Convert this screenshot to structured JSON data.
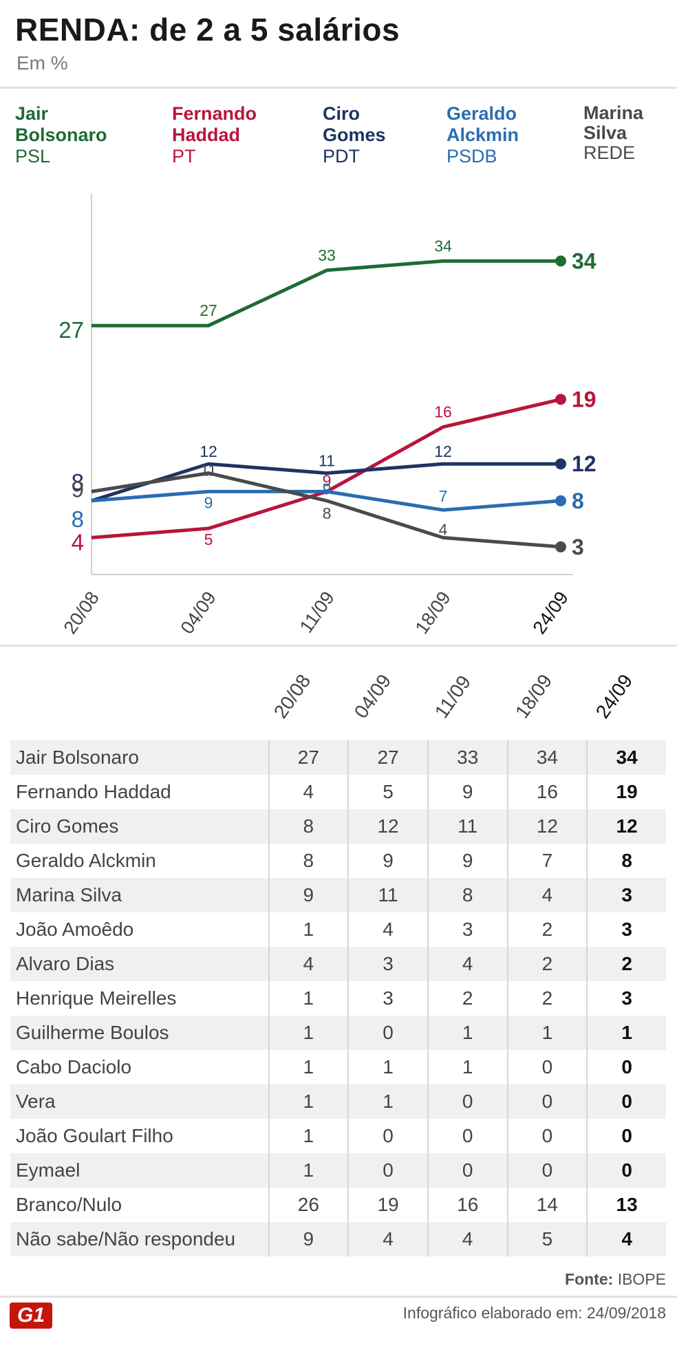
{
  "title": "RENDA: de 2 a 5 salários",
  "subtitle": "Em %",
  "legend": [
    {
      "name": "Jair Bolsonaro",
      "name_l1": "Jair",
      "name_l2": "Bolsonaro",
      "party": "PSL",
      "color": "#1e6b34"
    },
    {
      "name": "Fernando Haddad",
      "name_l1": "Fernando",
      "name_l2": "Haddad",
      "party": "PT",
      "color": "#b8153a"
    },
    {
      "name": "Ciro Gomes",
      "name_l1": "Ciro",
      "name_l2": "Gomes",
      "party": "PDT",
      "color": "#1f3364"
    },
    {
      "name": "Geraldo Alckmin",
      "name_l1": "Geraldo",
      "name_l2": "Alckmin",
      "party": "PSDB",
      "color": "#2a6db0"
    },
    {
      "name": "Marina Silva",
      "name_l1": "Marina",
      "name_l2": "Silva",
      "party": "REDE",
      "color": "#4a4a4a"
    }
  ],
  "chart_data": {
    "type": "line",
    "x": [
      "20/08",
      "04/09",
      "11/09",
      "18/09",
      "24/09"
    ],
    "ylim": [
      0,
      40
    ],
    "series": [
      {
        "name": "Jair Bolsonaro",
        "color": "#1e6b34",
        "values": [
          27,
          27,
          33,
          34,
          34
        ]
      },
      {
        "name": "Fernando Haddad",
        "color": "#b8153a",
        "values": [
          4,
          5,
          9,
          16,
          19
        ]
      },
      {
        "name": "Ciro Gomes",
        "color": "#1f3364",
        "values": [
          8,
          12,
          11,
          12,
          12
        ]
      },
      {
        "name": "Geraldo Alckmin",
        "color": "#2a6db0",
        "values": [
          8,
          9,
          9,
          7,
          8
        ]
      },
      {
        "name": "Marina Silva",
        "color": "#4a4a4a",
        "values": [
          9,
          11,
          8,
          4,
          3
        ]
      }
    ]
  },
  "table": {
    "headers": [
      "20/08",
      "04/09",
      "11/09",
      "18/09",
      "24/09"
    ],
    "rows": [
      {
        "name": "Jair Bolsonaro",
        "values": [
          "27",
          "27",
          "33",
          "34",
          "34"
        ]
      },
      {
        "name": "Fernando Haddad",
        "values": [
          "4",
          "5",
          "9",
          "16",
          "19"
        ]
      },
      {
        "name": "Ciro Gomes",
        "values": [
          "8",
          "12",
          "11",
          "12",
          "12"
        ]
      },
      {
        "name": "Geraldo Alckmin",
        "values": [
          "8",
          "9",
          "9",
          "7",
          "8"
        ]
      },
      {
        "name": "Marina Silva",
        "values": [
          "9",
          "11",
          "8",
          "4",
          "3"
        ]
      },
      {
        "name": "João Amoêdo",
        "values": [
          "1",
          "4",
          "3",
          "2",
          "3"
        ]
      },
      {
        "name": "Alvaro Dias",
        "values": [
          "4",
          "3",
          "4",
          "2",
          "2"
        ]
      },
      {
        "name": "Henrique Meirelles",
        "values": [
          "1",
          "3",
          "2",
          "2",
          "3"
        ]
      },
      {
        "name": "Guilherme Boulos",
        "values": [
          "1",
          "0",
          "1",
          "1",
          "1"
        ]
      },
      {
        "name": "Cabo Daciolo",
        "values": [
          "1",
          "1",
          "1",
          "0",
          "0"
        ]
      },
      {
        "name": "Vera",
        "values": [
          "1",
          "1",
          "0",
          "0",
          "0"
        ]
      },
      {
        "name": "João Goulart Filho",
        "values": [
          "1",
          "0",
          "0",
          "0",
          "0"
        ]
      },
      {
        "name": "Eymael",
        "values": [
          "1",
          "0",
          "0",
          "0",
          "0"
        ]
      },
      {
        "name": "Branco/Nulo",
        "values": [
          "26",
          "19",
          "16",
          "14",
          "13"
        ]
      },
      {
        "name": "Não sabe/Não respondeu",
        "values": [
          "9",
          "4",
          "4",
          "5",
          "4"
        ]
      }
    ]
  },
  "footer": {
    "source_label": "Fonte:",
    "source": "IBOPE",
    "credit": "Infográfico elaborado em: 24/09/2018",
    "logo": "G1"
  }
}
